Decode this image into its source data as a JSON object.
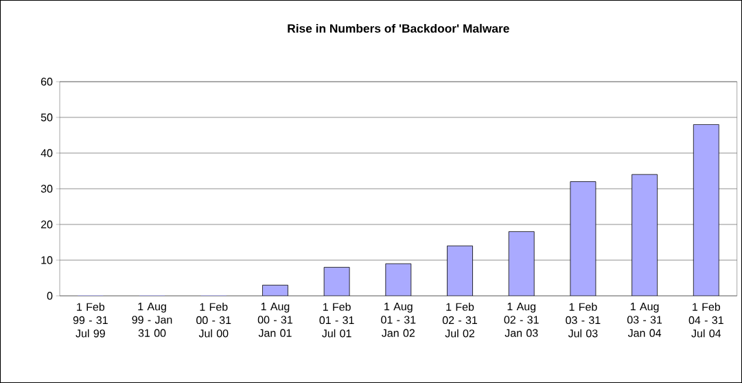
{
  "chart_data": {
    "type": "bar",
    "title": "Rise in Numbers of 'Backdoor' Malware",
    "categories": [
      "1 Feb 99 - 31 Jul 99",
      "1 Aug 99 - Jan 31 00",
      "1 Feb 00 - 31 Jul 00",
      "1 Aug 00 - 31 Jan 01",
      "1 Feb 01 - 31 Jul 01",
      "1 Aug 01 - 31 Jan 02",
      "1 Feb 02 - 31 Jul 02",
      "1 Aug 02 - 31 Jan 03",
      "1 Feb 03 - 31 Jul 03",
      "1 Aug 03 - 31 Jan 04",
      "1 Feb 04 - 31 Jul 04"
    ],
    "values": [
      0,
      0,
      0,
      3,
      8,
      9,
      14,
      18,
      32,
      34,
      48
    ],
    "color": "#aaaaff",
    "ylim": [
      0,
      60
    ],
    "yticks": [
      0,
      10,
      20,
      30,
      40,
      50,
      60
    ],
    "grid": "y"
  }
}
